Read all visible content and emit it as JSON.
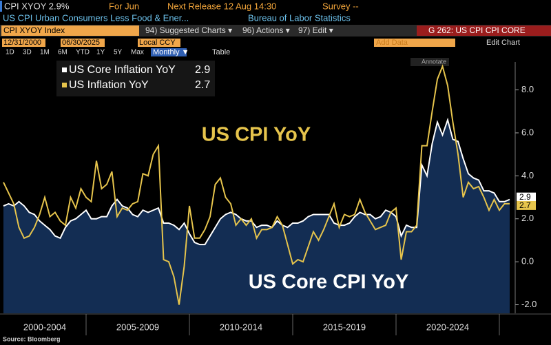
{
  "header": {
    "ticker": "CPI XYOY 2.9%",
    "period": "For Jun",
    "release": "Next Release 12 Aug 14:30",
    "survey": "Survey --",
    "description": "US CPI Urban Consumers Less Food & Ener...",
    "source_agency": "Bureau of Labor Statistics"
  },
  "toolbar": {
    "security": "CPI XYOY Index",
    "suggested": "94) Suggested Charts ▾",
    "actions": "96) Actions ▾",
    "edit": "97) Edit ▾",
    "page": "G 262: US CPI CPI CORE",
    "start_date": "12/31/2000",
    "end_date": "06/30/2025",
    "currency": "Local CCY",
    "add_data": "Add Data",
    "edit_chart": "Edit Chart",
    "ranges": [
      "1D",
      "3D",
      "1M",
      "6M",
      "YTD",
      "1Y",
      "5Y",
      "Max"
    ],
    "frequency": "Monthly ▼",
    "table": "Table",
    "annotate": "Annotate"
  },
  "footer": {
    "source": "Source: Bloomberg"
  },
  "chart_data": {
    "type": "line",
    "annotations": [
      "US CPI YoY",
      "US Core CPI YoY"
    ],
    "x": [
      2001,
      2001.25,
      2001.5,
      2001.75,
      2002,
      2002.25,
      2002.5,
      2002.75,
      2003,
      2003.25,
      2003.5,
      2003.75,
      2004,
      2004.25,
      2004.5,
      2004.75,
      2005,
      2005.25,
      2005.5,
      2005.75,
      2006,
      2006.25,
      2006.5,
      2006.75,
      2007,
      2007.25,
      2007.5,
      2007.75,
      2008,
      2008.25,
      2008.5,
      2008.75,
      2009,
      2009.25,
      2009.5,
      2009.75,
      2010,
      2010.25,
      2010.5,
      2010.75,
      2011,
      2011.25,
      2011.5,
      2011.75,
      2012,
      2012.25,
      2012.5,
      2012.75,
      2013,
      2013.25,
      2013.5,
      2013.75,
      2014,
      2014.25,
      2014.5,
      2014.75,
      2015,
      2015.25,
      2015.5,
      2015.75,
      2016,
      2016.25,
      2016.5,
      2016.75,
      2017,
      2017.25,
      2017.5,
      2017.75,
      2018,
      2018.25,
      2018.5,
      2018.75,
      2019,
      2019.25,
      2019.5,
      2019.75,
      2020,
      2020.25,
      2020.5,
      2020.75,
      2021,
      2021.25,
      2021.5,
      2021.75,
      2022,
      2022.25,
      2022.5,
      2022.75,
      2023,
      2023.25,
      2023.5,
      2023.75,
      2024,
      2024.25,
      2024.5,
      2024.75,
      2025,
      2025.25,
      2025.5
    ],
    "series": [
      {
        "name": "US Core Inflation YoY",
        "color": "#ffffff",
        "area_color": "#15325c",
        "values": [
          2.6,
          2.7,
          2.6,
          2.8,
          2.6,
          2.3,
          2.2,
          1.9,
          1.7,
          1.5,
          1.2,
          1.1,
          1.6,
          1.9,
          2.0,
          2.2,
          2.4,
          2.0,
          2.0,
          2.1,
          2.1,
          2.6,
          2.9,
          2.6,
          2.5,
          2.2,
          2.1,
          2.4,
          2.3,
          2.4,
          2.5,
          1.8,
          1.8,
          1.7,
          1.5,
          1.8,
          1.3,
          0.9,
          0.8,
          0.8,
          1.2,
          1.6,
          2.0,
          2.2,
          2.3,
          2.2,
          2.0,
          1.9,
          1.9,
          1.6,
          1.7,
          1.7,
          1.6,
          1.9,
          1.7,
          1.6,
          1.8,
          1.8,
          1.9,
          2.1,
          2.2,
          2.2,
          2.2,
          2.2,
          1.8,
          1.7,
          1.7,
          1.8,
          2.1,
          2.3,
          2.2,
          2.2,
          2.0,
          2.1,
          2.4,
          2.3,
          2.1,
          1.2,
          1.7,
          1.6,
          1.6,
          4.5,
          4.0,
          5.5,
          6.5,
          5.9,
          6.6,
          5.7,
          5.6,
          4.8,
          4.1,
          3.9,
          3.8,
          3.3,
          3.3,
          3.2,
          2.8,
          2.8,
          2.9
        ]
      },
      {
        "name": "US Inflation YoY",
        "color": "#e6c44c",
        "values": [
          3.7,
          3.2,
          2.7,
          1.6,
          1.1,
          1.2,
          1.6,
          2.2,
          3.0,
          2.1,
          2.3,
          1.9,
          1.7,
          3.0,
          2.5,
          3.4,
          3.0,
          2.8,
          4.7,
          3.4,
          3.6,
          4.2,
          2.1,
          2.5,
          2.4,
          2.7,
          2.8,
          4.1,
          4.0,
          5.0,
          5.4,
          0.1,
          0.0,
          -0.7,
          -2.0,
          -0.2,
          2.6,
          1.1,
          1.1,
          1.5,
          2.1,
          3.6,
          3.9,
          3.0,
          2.7,
          1.7,
          2.0,
          1.7,
          2.0,
          1.1,
          1.5,
          1.5,
          1.6,
          2.1,
          1.7,
          0.8,
          -0.1,
          0.1,
          0.0,
          0.7,
          1.4,
          1.0,
          1.5,
          2.1,
          2.7,
          1.6,
          2.2,
          2.1,
          2.2,
          2.9,
          2.3,
          1.9,
          1.5,
          1.6,
          1.7,
          2.3,
          2.5,
          0.1,
          1.4,
          1.4,
          1.7,
          5.4,
          5.4,
          7.0,
          8.5,
          9.1,
          8.2,
          6.5,
          5.0,
          3.0,
          3.7,
          3.4,
          3.5,
          3.0,
          2.4,
          2.9,
          2.4,
          2.7,
          2.7
        ]
      }
    ],
    "xlim": [
      2001,
      2025.5
    ],
    "xticks": [
      2005,
      2010,
      2015,
      2020,
      2025
    ],
    "x_band_labels": [
      "2000-2004",
      "2005-2009",
      "2010-2014",
      "2015-2019",
      "2020-2024"
    ],
    "ylim": [
      -2.4,
      9.3
    ],
    "yticks": [
      {
        "value": -2,
        "label": "-2.0"
      },
      {
        "value": 0,
        "label": "0.0"
      },
      {
        "value": 2,
        "label": "2.0"
      },
      {
        "value": 4,
        "label": "4.0"
      },
      {
        "value": 6,
        "label": "6.0"
      },
      {
        "value": 8,
        "label": "8.0"
      }
    ],
    "grid": false,
    "legend": "top-left"
  }
}
